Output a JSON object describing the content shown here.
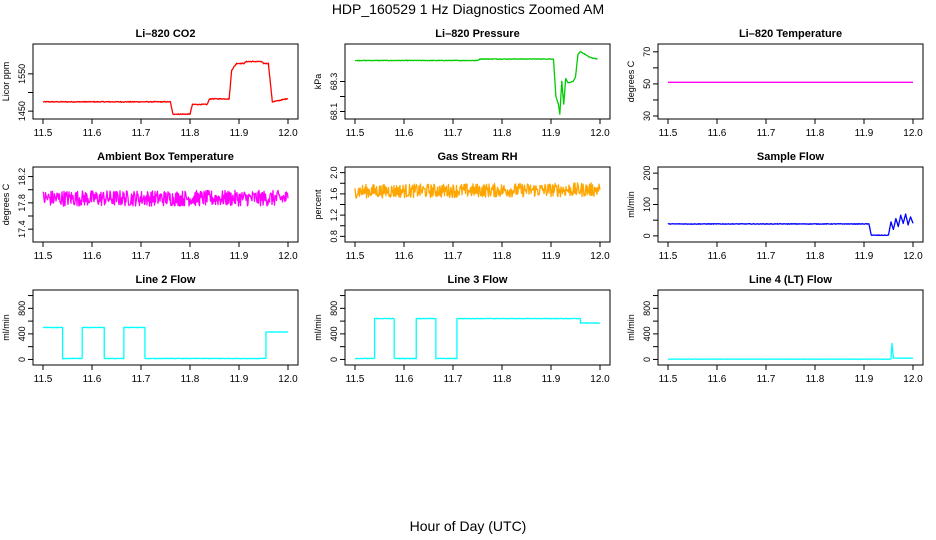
{
  "title": "HDP_160529  1 Hz Diagnostics Zoomed AM",
  "xlabel": "Hour of Day (UTC)",
  "colors": {
    "co2": "#ff0000",
    "pressure": "#00cc00",
    "temperature": "#ff00ff",
    "box_temp": "#ff00ff",
    "rh": "#ffa500",
    "sample_flow": "#0000ff",
    "line2": "#00ffff",
    "line3": "#00ffff",
    "line4": "#00ffff"
  },
  "chart_data": [
    {
      "type": "line",
      "title": "Li–820 CO2",
      "ylabel": "Licor ppm",
      "xlim": [
        11.5,
        12.0
      ],
      "ylim": [
        1437,
        1622
      ],
      "x_ticks": [
        "11.5",
        "11.6",
        "11.7",
        "11.8",
        "11.9",
        "12.0"
      ],
      "y_ticks": [
        1450,
        1500,
        1550
      ],
      "y_tick_labels": [
        "1450",
        "",
        "1550"
      ],
      "series": [
        {
          "name": "CO2",
          "color_key": "co2",
          "noise": 1.2,
          "points": [
            [
              11.5,
              1475
            ],
            [
              11.76,
              1475
            ],
            [
              11.765,
              1442
            ],
            [
              11.8,
              1442
            ],
            [
              11.805,
              1468
            ],
            [
              11.835,
              1468
            ],
            [
              11.84,
              1483
            ],
            [
              11.88,
              1483
            ],
            [
              11.885,
              1560
            ],
            [
              11.895,
              1578
            ],
            [
              11.91,
              1578
            ],
            [
              11.915,
              1583
            ],
            [
              11.945,
              1583
            ],
            [
              11.95,
              1578
            ],
            [
              11.96,
              1578
            ],
            [
              11.968,
              1475
            ],
            [
              11.98,
              1478
            ],
            [
              12.0,
              1484
            ]
          ]
        }
      ]
    },
    {
      "type": "line",
      "title": "Li–820 Pressure",
      "ylabel": "kPa",
      "xlim": [
        11.5,
        12.0
      ],
      "ylim": [
        68.07,
        68.53
      ],
      "x_ticks": [
        "11.5",
        "11.6",
        "11.7",
        "11.8",
        "11.9",
        "12.0"
      ],
      "y_ticks": [
        68.1,
        68.2,
        68.3
      ],
      "y_tick_labels": [
        "68.1",
        "",
        "68.3"
      ],
      "series": [
        {
          "name": "Pressure",
          "color_key": "pressure",
          "noise": 0.002,
          "points": [
            [
              11.5,
              68.44
            ],
            [
              11.75,
              68.44
            ],
            [
              11.755,
              68.45
            ],
            [
              11.84,
              68.45
            ],
            [
              11.905,
              68.45
            ],
            [
              11.91,
              68.2
            ],
            [
              11.915,
              68.15
            ],
            [
              11.918,
              68.08
            ],
            [
              11.922,
              68.3
            ],
            [
              11.926,
              68.15
            ],
            [
              11.93,
              68.32
            ],
            [
              11.935,
              68.29
            ],
            [
              11.945,
              68.3
            ],
            [
              11.95,
              68.33
            ],
            [
              11.955,
              68.48
            ],
            [
              11.96,
              68.5
            ],
            [
              11.98,
              68.46
            ],
            [
              11.995,
              68.45
            ]
          ]
        }
      ]
    },
    {
      "type": "line",
      "title": "Li–820 Temperature",
      "ylabel": "degrees C",
      "xlim": [
        11.5,
        12.0
      ],
      "ylim": [
        30,
        73
      ],
      "x_ticks": [
        "11.5",
        "11.6",
        "11.7",
        "11.8",
        "11.9",
        "12.0"
      ],
      "y_ticks": [
        30,
        40,
        50,
        60,
        70
      ],
      "y_tick_labels": [
        "30",
        "",
        "50",
        "",
        "70"
      ],
      "series": [
        {
          "name": "Temperature",
          "color_key": "temperature",
          "noise": 0,
          "points": [
            [
              11.5,
              51
            ],
            [
              12.0,
              51
            ]
          ]
        }
      ]
    },
    {
      "type": "line",
      "title": "Ambient Box Temperature",
      "ylabel": "degrees C",
      "xlim": [
        11.5,
        12.0
      ],
      "ylim": [
        17.25,
        18.3
      ],
      "x_ticks": [
        "11.5",
        "11.6",
        "11.7",
        "11.8",
        "11.9",
        "12.0"
      ],
      "y_ticks": [
        17.4,
        17.6,
        17.8,
        18.0,
        18.2
      ],
      "y_tick_labels": [
        "17.4",
        "",
        "17.8",
        "",
        "18.2"
      ],
      "series": [
        {
          "name": "Box temperature",
          "color_key": "box_temp",
          "noise": 0.12,
          "points": [
            [
              11.5,
              17.87
            ],
            [
              12.0,
              17.87
            ]
          ]
        }
      ]
    },
    {
      "type": "line",
      "title": "Gas Stream RH",
      "ylabel": "percent",
      "xlim": [
        11.5,
        12.0
      ],
      "ylim": [
        0.75,
        2.05
      ],
      "x_ticks": [
        "11.5",
        "11.6",
        "11.7",
        "11.8",
        "11.9",
        "12.0"
      ],
      "y_ticks": [
        0.8,
        1.0,
        1.2,
        1.4,
        1.6,
        1.8,
        2.0
      ],
      "y_tick_labels": [
        "0.8",
        "",
        "1.2",
        "",
        "1.6",
        "",
        "2.0"
      ],
      "series": [
        {
          "name": "RH",
          "color_key": "rh",
          "noise": 0.13,
          "points": [
            [
              11.5,
              1.65
            ],
            [
              12.0,
              1.68
            ]
          ]
        }
      ]
    },
    {
      "type": "line",
      "title": "Sample Flow",
      "ylabel": "ml/min",
      "xlim": [
        11.5,
        12.0
      ],
      "ylim": [
        -10,
        210
      ],
      "x_ticks": [
        "11.5",
        "11.6",
        "11.7",
        "11.8",
        "11.9",
        "12.0"
      ],
      "y_ticks": [
        0,
        50,
        100,
        150,
        200
      ],
      "y_tick_labels": [
        "0",
        "",
        "100",
        "",
        "200"
      ],
      "series": [
        {
          "name": "Sample flow",
          "color_key": "sample_flow",
          "noise": 1,
          "points": [
            [
              11.5,
              38
            ],
            [
              11.91,
              38
            ],
            [
              11.915,
              2
            ],
            [
              11.95,
              2
            ],
            [
              11.955,
              45
            ],
            [
              11.96,
              20
            ],
            [
              11.965,
              55
            ],
            [
              11.97,
              30
            ],
            [
              11.975,
              65
            ],
            [
              11.98,
              40
            ],
            [
              11.985,
              70
            ],
            [
              11.99,
              35
            ],
            [
              11.995,
              60
            ],
            [
              12.0,
              40
            ]
          ]
        }
      ]
    },
    {
      "type": "line",
      "title": "Line 2 Flow",
      "ylabel": "ml/min",
      "xlim": [
        11.5,
        12.0
      ],
      "ylim": [
        -40,
        1040
      ],
      "x_ticks": [
        "11.5",
        "11.6",
        "11.7",
        "11.8",
        "11.9",
        "12.0"
      ],
      "y_ticks": [
        0,
        200,
        400,
        600,
        800,
        1000
      ],
      "y_tick_labels": [
        "0",
        "",
        "400",
        "",
        "800",
        ""
      ],
      "series": [
        {
          "name": "Line 2",
          "color_key": "line2",
          "noise": 4,
          "points": [
            [
              11.5,
              500
            ],
            [
              11.54,
              500
            ],
            [
              11.54,
              15
            ],
            [
              11.58,
              15
            ],
            [
              11.58,
              500
            ],
            [
              11.625,
              500
            ],
            [
              11.625,
              15
            ],
            [
              11.665,
              15
            ],
            [
              11.665,
              500
            ],
            [
              11.708,
              500
            ],
            [
              11.708,
              15
            ],
            [
              11.955,
              15
            ],
            [
              11.955,
              430
            ],
            [
              12.0,
              430
            ]
          ]
        }
      ]
    },
    {
      "type": "line",
      "title": "Line 3 Flow",
      "ylabel": "ml/min",
      "xlim": [
        11.5,
        12.0
      ],
      "ylim": [
        -40,
        1040
      ],
      "x_ticks": [
        "11.5",
        "11.6",
        "11.7",
        "11.8",
        "11.9",
        "12.0"
      ],
      "y_ticks": [
        0,
        200,
        400,
        600,
        800,
        1000
      ],
      "y_tick_labels": [
        "0",
        "",
        "400",
        "",
        "800",
        ""
      ],
      "series": [
        {
          "name": "Line 3",
          "color_key": "line3",
          "noise": 4,
          "points": [
            [
              11.5,
              15
            ],
            [
              11.54,
              15
            ],
            [
              11.54,
              640
            ],
            [
              11.58,
              640
            ],
            [
              11.58,
              15
            ],
            [
              11.625,
              15
            ],
            [
              11.625,
              640
            ],
            [
              11.665,
              640
            ],
            [
              11.665,
              15
            ],
            [
              11.708,
              15
            ],
            [
              11.708,
              640
            ],
            [
              11.96,
              640
            ],
            [
              11.96,
              570
            ],
            [
              12.0,
              570
            ]
          ]
        }
      ]
    },
    {
      "type": "line",
      "title": "Line 4 (LT) Flow",
      "ylabel": "ml/min",
      "xlim": [
        11.5,
        12.0
      ],
      "ylim": [
        -40,
        1040
      ],
      "x_ticks": [
        "11.5",
        "11.6",
        "11.7",
        "11.8",
        "11.9",
        "12.0"
      ],
      "y_ticks": [
        0,
        200,
        400,
        600,
        800,
        1000
      ],
      "y_tick_labels": [
        "0",
        "",
        "400",
        "",
        "800",
        ""
      ],
      "series": [
        {
          "name": "Line 4",
          "color_key": "line4",
          "noise": 2,
          "points": [
            [
              11.5,
              5
            ],
            [
              11.955,
              5
            ],
            [
              11.957,
              250
            ],
            [
              11.96,
              20
            ],
            [
              12.0,
              20
            ]
          ]
        }
      ]
    }
  ]
}
